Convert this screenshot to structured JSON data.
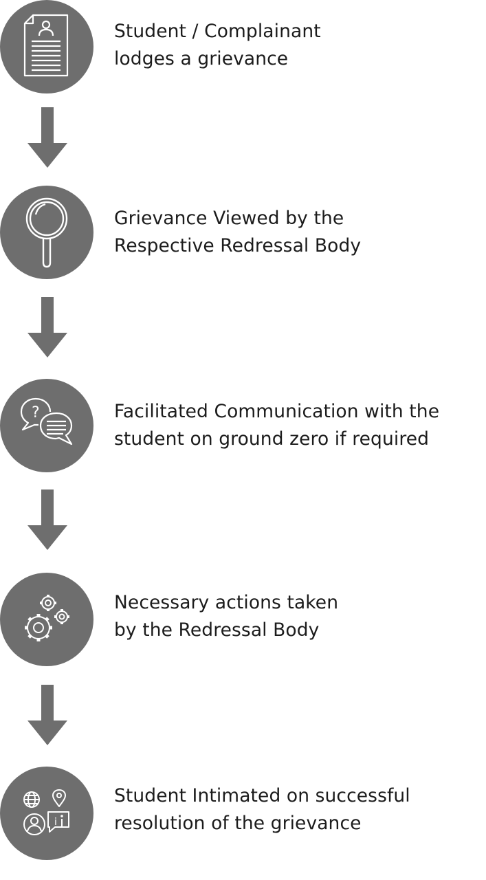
{
  "steps": [
    {
      "line1": "Student / Complainant",
      "line2": "lodges a grievance",
      "icon": "document-user-icon"
    },
    {
      "line1": "Grievance Viewed by the",
      "line2": "Respective Redressal Body",
      "icon": "magnifier-icon"
    },
    {
      "line1": "Facilitated Communication with the",
      "line2": "student on ground zero if required",
      "icon": "chat-bubbles-icon"
    },
    {
      "line1": "Necessary actions taken",
      "line2": "by the Redressal Body",
      "icon": "gears-icon"
    },
    {
      "line1": "Student Intimated on successful",
      "line2": "resolution of the grievance",
      "icon": "user-info-icon"
    }
  ],
  "colors": {
    "circle": "#6e6e6e",
    "arrow": "#6e6e6e",
    "icon_stroke": "#ffffff",
    "text": "#1c1c1c"
  }
}
